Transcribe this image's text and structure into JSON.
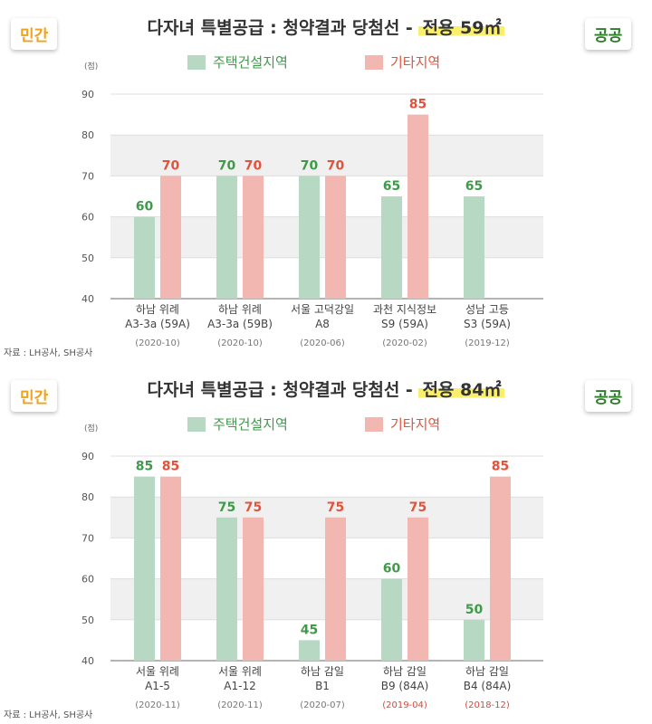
{
  "colors": {
    "housing": "#b7d8c2",
    "other": "#f2b7b0",
    "housing_label": "#3f9a4a",
    "other_label": "#e2533b",
    "band": "#f0f0f0",
    "date_red": "#d9493a"
  },
  "charts": [
    {
      "badge_left": "민간",
      "badge_right": "공공",
      "title_main": "다자녀 특별공급 : 청약결과 당첨선 -",
      "title_highlight": "전용 59㎡",
      "unit": "(점)",
      "source": "자료 : LH공사, SH공사",
      "legend": [
        "주택건설지역",
        "기타지역"
      ]
    },
    {
      "badge_left": "민간",
      "badge_right": "공공",
      "title_main": "다자녀 특별공급 : 청약결과 당첨선 -",
      "title_highlight": "전용 84㎡",
      "unit": "(점)",
      "source": "자료 : LH공사, SH공사",
      "legend": [
        "주택건설지역",
        "기타지역"
      ]
    }
  ],
  "chart_data": [
    {
      "type": "bar",
      "title": "다자녀 특별공급 : 청약결과 당첨선 - 전용 59㎡",
      "ylabel": "(점)",
      "ylim": [
        40,
        90
      ],
      "yticks": [
        40,
        50,
        60,
        70,
        80,
        90
      ],
      "categories": [
        {
          "line1": "하남 위례",
          "line2": "A3-3a (59A)",
          "date": "(2020-10)",
          "date_highlight": false
        },
        {
          "line1": "하남 위례",
          "line2": "A3-3a (59B)",
          "date": "(2020-10)",
          "date_highlight": false
        },
        {
          "line1": "서울 고덕강일",
          "line2": "A8",
          "date": "(2020-06)",
          "date_highlight": false
        },
        {
          "line1": "과천 지식정보",
          "line2": "S9 (59A)",
          "date": "(2020-02)",
          "date_highlight": false
        },
        {
          "line1": "성남 고등",
          "line2": "S3 (59A)",
          "date": "(2019-12)",
          "date_highlight": false
        }
      ],
      "series": [
        {
          "name": "주택건설지역",
          "values": [
            60,
            70,
            70,
            65,
            65
          ]
        },
        {
          "name": "기타지역",
          "values": [
            70,
            70,
            70,
            85,
            null
          ]
        }
      ]
    },
    {
      "type": "bar",
      "title": "다자녀 특별공급 : 청약결과 당첨선 - 전용 84㎡",
      "ylabel": "(점)",
      "ylim": [
        40,
        90
      ],
      "yticks": [
        40,
        50,
        60,
        70,
        80,
        90
      ],
      "categories": [
        {
          "line1": "서울 위례",
          "line2": "A1-5",
          "date": "(2020-11)",
          "date_highlight": false
        },
        {
          "line1": "서울 위례",
          "line2": "A1-12",
          "date": "(2020-11)",
          "date_highlight": false
        },
        {
          "line1": "하남 감일",
          "line2": "B1",
          "date": "(2020-07)",
          "date_highlight": false
        },
        {
          "line1": "하남 감일",
          "line2": "B9 (84A)",
          "date": "(2019-04)",
          "date_highlight": true
        },
        {
          "line1": "하남 감일",
          "line2": "B4 (84A)",
          "date": "(2018-12)",
          "date_highlight": true
        }
      ],
      "series": [
        {
          "name": "주택건설지역",
          "values": [
            85,
            75,
            45,
            60,
            50
          ]
        },
        {
          "name": "기타지역",
          "values": [
            85,
            75,
            75,
            75,
            85
          ]
        }
      ]
    }
  ]
}
